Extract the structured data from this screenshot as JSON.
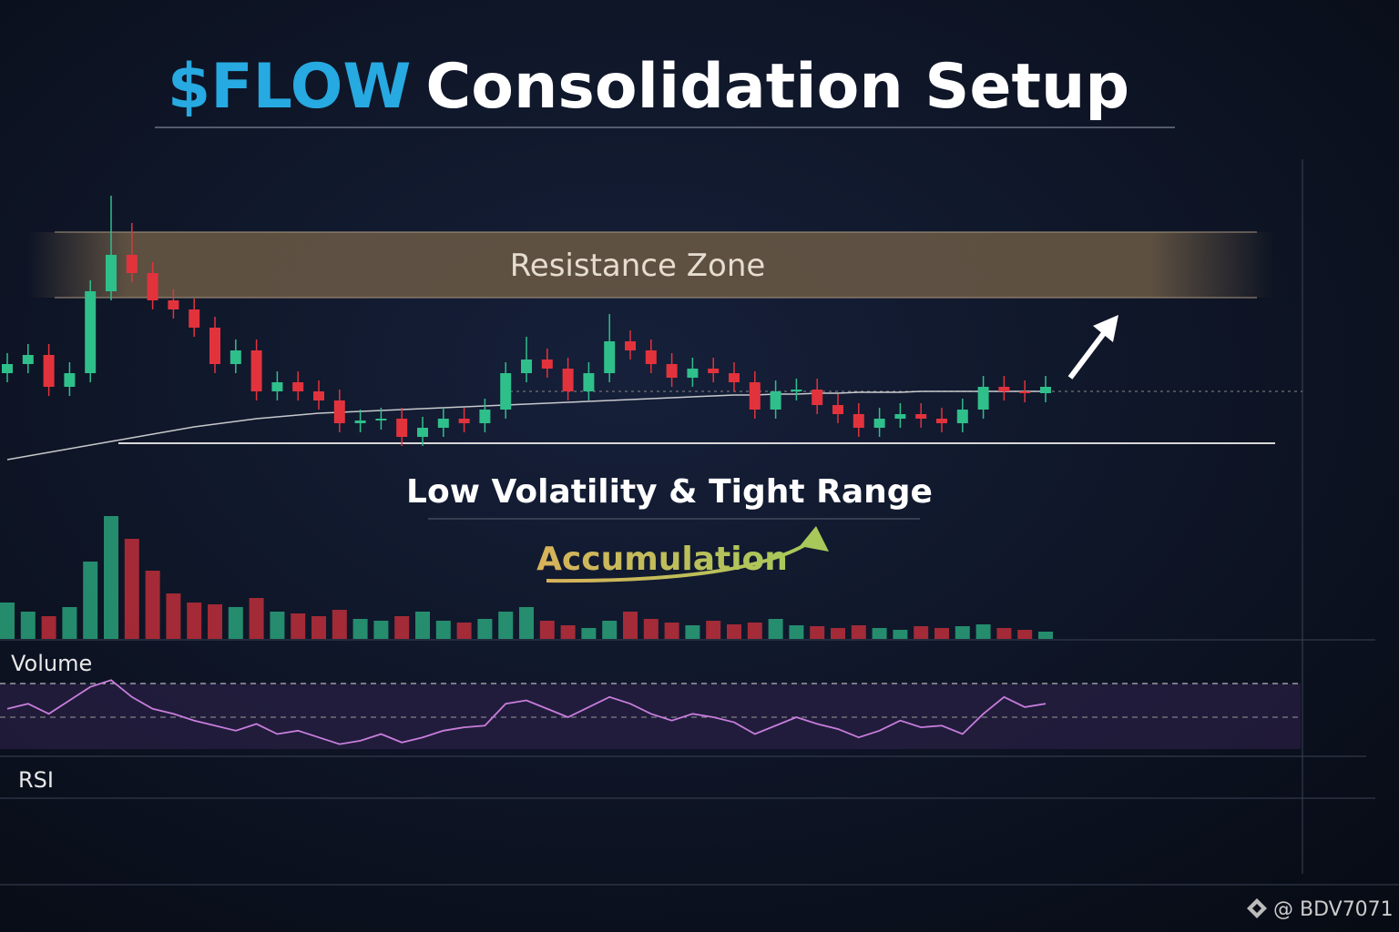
{
  "chart_data": {
    "type": "candlestick",
    "title_ticker": "$FLOW",
    "title": "Consolidation Setup",
    "ylim": [
      0,
      320
    ],
    "open": [
      110,
      120,
      130,
      95,
      110,
      200,
      240,
      220,
      190,
      180,
      160,
      120,
      135,
      90,
      100,
      90,
      80,
      55,
      58,
      60,
      40,
      50,
      60,
      55,
      70,
      110,
      125,
      115,
      90,
      110,
      145,
      135,
      120,
      105,
      115,
      110,
      100,
      70,
      90,
      92,
      75,
      65,
      50,
      60,
      65,
      60,
      55,
      70,
      95,
      90,
      88
    ],
    "close": [
      120,
      130,
      95,
      110,
      200,
      240,
      220,
      190,
      180,
      160,
      120,
      135,
      90,
      100,
      90,
      80,
      55,
      58,
      60,
      40,
      50,
      60,
      55,
      70,
      110,
      125,
      115,
      90,
      110,
      145,
      135,
      120,
      105,
      115,
      110,
      100,
      70,
      90,
      92,
      75,
      65,
      50,
      60,
      65,
      60,
      55,
      70,
      95,
      90,
      88,
      95
    ],
    "high": [
      132,
      142,
      142,
      122,
      212,
      305,
      275,
      232,
      202,
      192,
      172,
      147,
      147,
      112,
      112,
      102,
      92,
      70,
      72,
      72,
      62,
      72,
      72,
      82,
      122,
      150,
      137,
      127,
      122,
      175,
      157,
      147,
      132,
      127,
      127,
      122,
      112,
      102,
      104,
      104,
      87,
      77,
      72,
      77,
      77,
      72,
      82,
      107,
      107,
      102,
      107
    ],
    "low": [
      100,
      110,
      85,
      85,
      100,
      190,
      210,
      180,
      170,
      150,
      110,
      110,
      80,
      80,
      80,
      70,
      45,
      45,
      48,
      30,
      30,
      40,
      45,
      45,
      60,
      100,
      105,
      80,
      80,
      100,
      125,
      110,
      95,
      95,
      100,
      90,
      60,
      60,
      80,
      65,
      55,
      40,
      40,
      50,
      50,
      45,
      45,
      60,
      80,
      78,
      78
    ],
    "up_color": "#2fbf8b",
    "down_color": "#e2333d",
    "moving_average": [
      15,
      19,
      23,
      27,
      31,
      35,
      39,
      43,
      47,
      51,
      54,
      57,
      60,
      62,
      64,
      66,
      67,
      68,
      69,
      70,
      71,
      72,
      73,
      74,
      75,
      76,
      77,
      78,
      79,
      80,
      81,
      82,
      83,
      84,
      85,
      86,
      86,
      87,
      87,
      88,
      88,
      89,
      89,
      89,
      90,
      90,
      90,
      90,
      90,
      90,
      90
    ],
    "resistance_zone": [
      193,
      265
    ],
    "resistance_label": "Resistance Zone",
    "support_level": 33,
    "range_level": 90,
    "range_label": "Low Volatility & Tight Range",
    "accumulation_label": "Accumulation",
    "volume_label": "Volume",
    "vlim": [
      0,
      140
    ],
    "volume": [
      40,
      30,
      25,
      35,
      85,
      135,
      110,
      75,
      50,
      40,
      38,
      35,
      45,
      30,
      28,
      25,
      32,
      22,
      20,
      25,
      30,
      20,
      18,
      22,
      30,
      35,
      20,
      15,
      12,
      20,
      30,
      22,
      18,
      15,
      20,
      16,
      18,
      22,
      15,
      14,
      12,
      15,
      12,
      10,
      14,
      12,
      14,
      16,
      12,
      10,
      8
    ],
    "rsi_label": "RSI",
    "rsilim": [
      30,
      70
    ],
    "rsi_levels": [
      50,
      70
    ],
    "rsi_color": "#c77ddb",
    "rsi": [
      55,
      58,
      52,
      60,
      68,
      72,
      62,
      55,
      52,
      48,
      45,
      42,
      46,
      40,
      42,
      38,
      34,
      36,
      40,
      35,
      38,
      42,
      44,
      45,
      58,
      60,
      55,
      50,
      56,
      62,
      58,
      52,
      48,
      52,
      50,
      47,
      40,
      45,
      50,
      46,
      43,
      38,
      42,
      48,
      44,
      45,
      40,
      52,
      62,
      56,
      58
    ],
    "watermark": "@ BDV7071"
  }
}
